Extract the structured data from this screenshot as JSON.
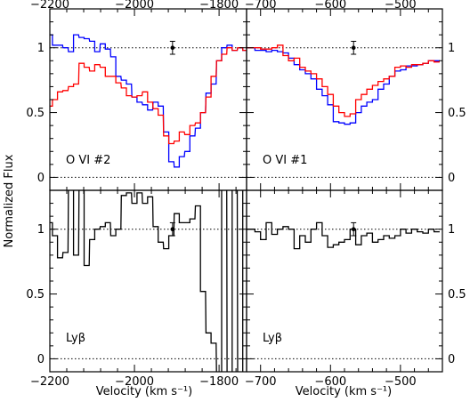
{
  "figure": {
    "ylabel": "Normalized Flux",
    "xlabel_left": "Velocity (km s⁻¹)",
    "xlabel_right": "Velocity (km s⁻¹)"
  },
  "chart_data": [
    {
      "type": "line",
      "panel": "top-left",
      "label": "O VI #2",
      "xlim": [
        -2200,
        -1735
      ],
      "ylim": [
        -0.1,
        1.3
      ],
      "xticks": [
        -2200,
        -2000,
        -1800
      ],
      "yticks": [
        0,
        0.5,
        1
      ],
      "ytick_labels": [
        "0",
        "0.5",
        "1"
      ],
      "xtick_labels": [
        "−2200",
        "−2000",
        "−1800"
      ],
      "reference_line": 1,
      "error_bar": {
        "x": -1910,
        "y": 1.0,
        "err": 0.05
      },
      "series": [
        {
          "color": "#0000ff",
          "step": true,
          "x": [
            -2200,
            -2188,
            -2176,
            -2163,
            -2150,
            -2138,
            -2125,
            -2113,
            -2100,
            -2088,
            -2075,
            -2063,
            -2050,
            -2038,
            -2025,
            -2013,
            -2000,
            -1988,
            -1975,
            -1963,
            -1950,
            -1938,
            -1925,
            -1913,
            -1900,
            -1888,
            -1875,
            -1863,
            -1850,
            -1838,
            -1825,
            -1813,
            -1800,
            -1788,
            -1775,
            -1763,
            -1750,
            -1738
          ],
          "y": [
            1.1,
            1.02,
            1.02,
            1.0,
            0.97,
            1.1,
            1.08,
            1.07,
            1.05,
            0.97,
            1.03,
            0.99,
            0.93,
            0.78,
            0.75,
            0.72,
            0.62,
            0.58,
            0.56,
            0.52,
            0.58,
            0.55,
            0.35,
            0.12,
            0.08,
            0.16,
            0.2,
            0.32,
            0.38,
            0.5,
            0.65,
            0.72,
            0.9,
            1.0,
            1.02,
            0.98,
            1.0,
            0.98
          ]
        },
        {
          "color": "#ff0000",
          "step": true,
          "x": [
            -2200,
            -2188,
            -2176,
            -2163,
            -2150,
            -2138,
            -2125,
            -2113,
            -2100,
            -2088,
            -2075,
            -2063,
            -2050,
            -2038,
            -2025,
            -2013,
            -2000,
            -1988,
            -1975,
            -1963,
            -1950,
            -1938,
            -1925,
            -1913,
            -1900,
            -1888,
            -1875,
            -1863,
            -1850,
            -1838,
            -1825,
            -1813,
            -1800,
            -1788,
            -1775,
            -1763,
            -1750,
            -1738
          ],
          "y": [
            0.55,
            0.6,
            0.66,
            0.67,
            0.7,
            0.72,
            0.88,
            0.85,
            0.82,
            0.87,
            0.85,
            0.78,
            0.78,
            0.73,
            0.69,
            0.63,
            0.62,
            0.63,
            0.66,
            0.58,
            0.53,
            0.48,
            0.32,
            0.26,
            0.28,
            0.35,
            0.33,
            0.4,
            0.42,
            0.5,
            0.62,
            0.78,
            0.9,
            0.95,
            1.0,
            0.98,
            1.0,
            0.98
          ]
        }
      ]
    },
    {
      "type": "line",
      "panel": "top-right",
      "label": "O VI #1",
      "xlim": [
        -720,
        -440
      ],
      "ylim": [
        -0.1,
        1.3
      ],
      "xticks": [
        -700,
        -600,
        -500
      ],
      "yticks": [
        0,
        0.5,
        1
      ],
      "ytick_labels": [
        "0",
        "0.5",
        "1"
      ],
      "xtick_labels": [
        "−700",
        "−600",
        "−500"
      ],
      "reference_line": 1,
      "error_bar": {
        "x": -567,
        "y": 1.0,
        "err": 0.05
      },
      "series": [
        {
          "color": "#0000ff",
          "step": true,
          "x": [
            -720,
            -712,
            -704,
            -696,
            -688,
            -680,
            -672,
            -664,
            -656,
            -648,
            -640,
            -632,
            -624,
            -616,
            -608,
            -600,
            -592,
            -584,
            -576,
            -568,
            -560,
            -552,
            -544,
            -536,
            -528,
            -520,
            -512,
            -504,
            -496,
            -488,
            -480,
            -472,
            -464,
            -456,
            -448
          ],
          "y": [
            1.0,
            1.0,
            0.98,
            0.98,
            0.97,
            0.98,
            0.97,
            0.96,
            0.92,
            0.87,
            0.83,
            0.8,
            0.76,
            0.68,
            0.63,
            0.56,
            0.43,
            0.42,
            0.41,
            0.42,
            0.5,
            0.55,
            0.58,
            0.6,
            0.68,
            0.72,
            0.78,
            0.82,
            0.83,
            0.86,
            0.86,
            0.87,
            0.88,
            0.9,
            0.9
          ]
        },
        {
          "color": "#ff0000",
          "step": true,
          "x": [
            -720,
            -712,
            -704,
            -696,
            -688,
            -680,
            -672,
            -664,
            -656,
            -648,
            -640,
            -632,
            -624,
            -616,
            -608,
            -600,
            -592,
            -584,
            -576,
            -568,
            -560,
            -552,
            -544,
            -536,
            -528,
            -520,
            -512,
            -504,
            -496,
            -488,
            -480,
            -472,
            -464,
            -456,
            -448
          ],
          "y": [
            1.0,
            1.0,
            1.0,
            0.99,
            0.99,
            1.0,
            1.02,
            0.94,
            0.9,
            0.92,
            0.85,
            0.82,
            0.8,
            0.76,
            0.7,
            0.64,
            0.55,
            0.5,
            0.47,
            0.49,
            0.6,
            0.64,
            0.68,
            0.71,
            0.74,
            0.76,
            0.78,
            0.85,
            0.86,
            0.85,
            0.87,
            0.87,
            0.88,
            0.9,
            0.89
          ]
        }
      ]
    },
    {
      "type": "line",
      "panel": "bottom-left",
      "label": "Lyβ",
      "xlim": [
        -2200,
        -1735
      ],
      "ylim": [
        -0.1,
        1.3
      ],
      "xticks": [
        -2200,
        -2000,
        -1800
      ],
      "yticks": [
        0,
        0.5,
        1
      ],
      "ytick_labels": [
        "0",
        "0.5",
        "1"
      ],
      "xtick_labels": [
        "−2200",
        "−2000",
        "−1800"
      ],
      "reference_line": 1,
      "error_bar": {
        "x": -1910,
        "y": 1.0,
        "err": 0.05
      },
      "series": [
        {
          "color": "#000000",
          "step": true,
          "x": [
            -2200,
            -2188,
            -2176,
            -2163,
            -2150,
            -2138,
            -2125,
            -2113,
            -2100,
            -2088,
            -2075,
            -2063,
            -2050,
            -2038,
            -2025,
            -2013,
            -2000,
            -1988,
            -1975,
            -1963,
            -1950,
            -1938,
            -1925,
            -1913,
            -1900,
            -1888,
            -1875,
            -1863,
            -1850,
            -1838,
            -1825,
            -1813,
            -1800,
            -1788,
            -1775,
            -1763,
            -1750,
            -1738
          ],
          "y": [
            1.05,
            0.95,
            0.78,
            0.82,
            1.35,
            0.8,
            1.35,
            0.72,
            0.92,
            1.0,
            1.02,
            1.05,
            0.95,
            1.0,
            1.26,
            1.28,
            1.2,
            1.28,
            1.2,
            1.25,
            1.02,
            0.9,
            0.85,
            0.95,
            1.12,
            1.05,
            1.05,
            1.08,
            1.18,
            0.52,
            0.2,
            0.12,
            -0.15,
            1.35,
            -0.15,
            1.35,
            -0.15,
            1.35
          ]
        }
      ]
    },
    {
      "type": "line",
      "panel": "bottom-right",
      "label": "Lyβ",
      "xlim": [
        -720,
        -440
      ],
      "ylim": [
        -0.1,
        1.3
      ],
      "xticks": [
        -700,
        -600,
        -500
      ],
      "yticks": [
        0,
        0.5,
        1
      ],
      "ytick_labels": [
        "0",
        "0.5",
        "1"
      ],
      "xtick_labels": [
        "−700",
        "−600",
        "−500"
      ],
      "reference_line": 1,
      "error_bar": {
        "x": -567,
        "y": 1.0,
        "err": 0.05
      },
      "series": [
        {
          "color": "#000000",
          "step": true,
          "x": [
            -720,
            -712,
            -704,
            -696,
            -688,
            -680,
            -672,
            -664,
            -656,
            -648,
            -640,
            -632,
            -624,
            -616,
            -608,
            -600,
            -592,
            -584,
            -576,
            -568,
            -560,
            -552,
            -544,
            -536,
            -528,
            -520,
            -512,
            -504,
            -496,
            -488,
            -480,
            -472,
            -464,
            -456,
            -448
          ],
          "y": [
            1.0,
            1.0,
            0.98,
            0.92,
            1.05,
            0.96,
            1.0,
            1.02,
            1.0,
            0.85,
            0.95,
            0.9,
            1.0,
            1.05,
            0.95,
            0.86,
            0.88,
            0.9,
            0.92,
            1.0,
            0.88,
            0.95,
            0.97,
            0.9,
            0.92,
            0.95,
            0.93,
            0.95,
            1.0,
            0.97,
            1.0,
            0.98,
            0.97,
            1.0,
            0.98
          ]
        }
      ]
    }
  ]
}
